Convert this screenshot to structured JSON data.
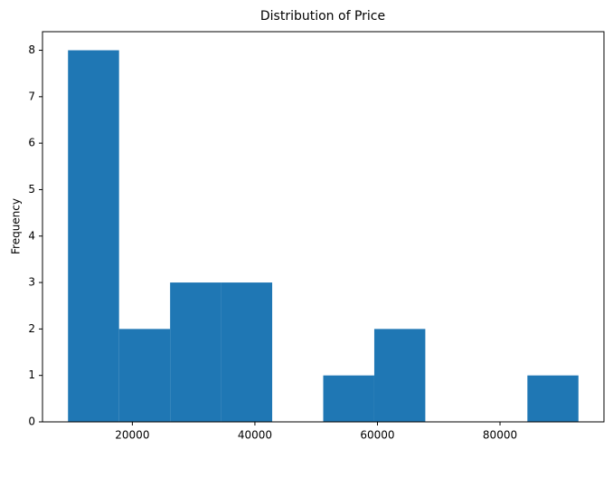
{
  "chart_data": {
    "type": "histogram",
    "title": "Distribution of Price",
    "ylabel": "Frequency",
    "bins": [
      9500,
      17830,
      26160,
      34490,
      42820,
      51150,
      59480,
      67810,
      76140,
      84470,
      92800
    ],
    "values": [
      8,
      2,
      3,
      3,
      0,
      1,
      2,
      0,
      0,
      1
    ],
    "color": "#1f77b4",
    "xlim": [
      5335,
      96965
    ],
    "xticks": [
      20000,
      40000,
      60000,
      80000
    ],
    "ylim": [
      0,
      8.4
    ],
    "yticks": [
      0,
      1,
      2,
      3,
      4,
      5,
      6,
      7,
      8
    ],
    "grid": false
  }
}
